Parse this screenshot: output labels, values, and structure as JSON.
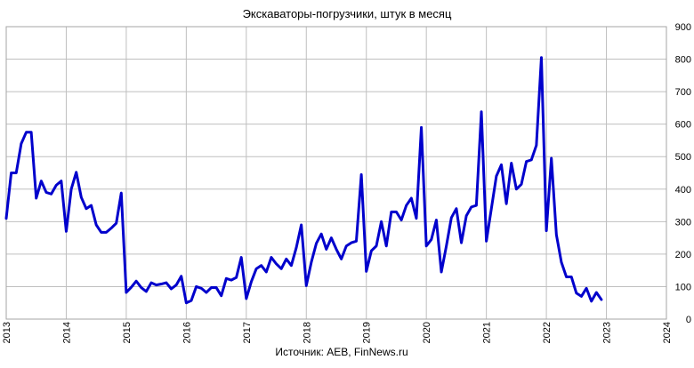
{
  "chart_data": {
    "type": "line",
    "title": "Экскаваторы-погрузчики, штук в месяц",
    "source": "Источник: AEB, FinNews.ru",
    "xlabel": "",
    "ylabel": "",
    "x_ticks": [
      "2013",
      "2014",
      "2015",
      "2016",
      "2017",
      "2018",
      "2019",
      "2020",
      "2021",
      "2022",
      "2023",
      "2024"
    ],
    "y_ticks": [
      "0",
      "100",
      "200",
      "300",
      "400",
      "500",
      "600",
      "700",
      "800",
      "900"
    ],
    "xlim": [
      2013,
      2024
    ],
    "ylim": [
      0,
      900
    ],
    "y_axis_side": "right",
    "grid": true,
    "line_color": "#0000cc",
    "grid_color": "#bfbfbf",
    "series": [
      {
        "name": "",
        "start": "2013-01",
        "frequency": "monthly",
        "values": [
          310,
          450,
          450,
          540,
          575,
          575,
          372,
          425,
          390,
          385,
          412,
          425,
          270,
          400,
          452,
          375,
          340,
          350,
          290,
          267,
          267,
          280,
          295,
          388,
          82,
          98,
          117,
          97,
          85,
          112,
          105,
          108,
          112,
          93,
          105,
          132,
          50,
          57,
          100,
          95,
          82,
          97,
          97,
          72,
          125,
          120,
          128,
          190,
          63,
          115,
          155,
          165,
          145,
          190,
          170,
          155,
          185,
          165,
          220,
          290,
          103,
          175,
          233,
          262,
          215,
          250,
          215,
          185,
          225,
          235,
          240,
          445,
          147,
          210,
          225,
          300,
          225,
          330,
          330,
          305,
          350,
          372,
          310,
          590,
          225,
          245,
          305,
          145,
          225,
          312,
          340,
          235,
          318,
          345,
          350,
          638,
          240,
          340,
          440,
          475,
          355,
          480,
          400,
          415,
          485,
          490,
          535,
          805,
          272,
          495,
          260,
          175,
          130,
          130,
          80,
          70,
          95,
          55,
          82,
          60
        ]
      }
    ]
  }
}
